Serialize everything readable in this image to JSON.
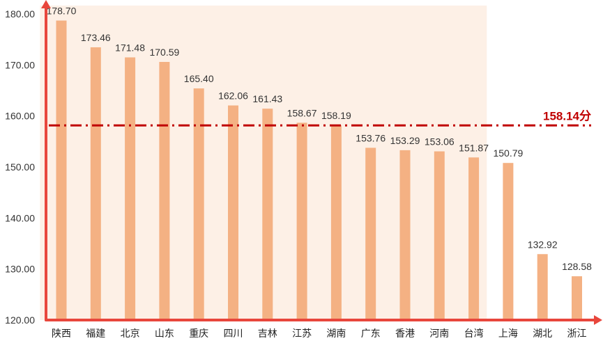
{
  "chart_data": {
    "type": "bar",
    "categories": [
      "陕西",
      "福建",
      "北京",
      "山东",
      "重庆",
      "四川",
      "吉林",
      "江苏",
      "湖南",
      "广东",
      "香港",
      "河南",
      "台湾",
      "上海",
      "湖北",
      "浙江"
    ],
    "values": [
      178.7,
      173.46,
      171.48,
      170.59,
      165.4,
      162.06,
      161.43,
      158.67,
      158.19,
      153.76,
      153.29,
      153.06,
      151.87,
      150.79,
      132.92,
      128.58
    ],
    "value_labels": [
      "178.70",
      "173.46",
      "171.48",
      "170.59",
      "165.40",
      "162.06",
      "161.43",
      "158.67",
      "158.19",
      "153.76",
      "153.29",
      "153.06",
      "151.87",
      "150.79",
      "132.92",
      "128.58"
    ],
    "ylim": [
      120,
      180
    ],
    "yticks": [
      "120.00",
      "130.00",
      "140.00",
      "150.00",
      "160.00",
      "170.00",
      "180.00"
    ],
    "reference_line": {
      "value": 158.14,
      "label": "158.14分"
    },
    "highlighted_count": 13,
    "colors": {
      "bar": "#f4b183",
      "axis": "#e8463c",
      "reference": "#c00000",
      "highlight_bg": "#fdf0e6"
    }
  }
}
